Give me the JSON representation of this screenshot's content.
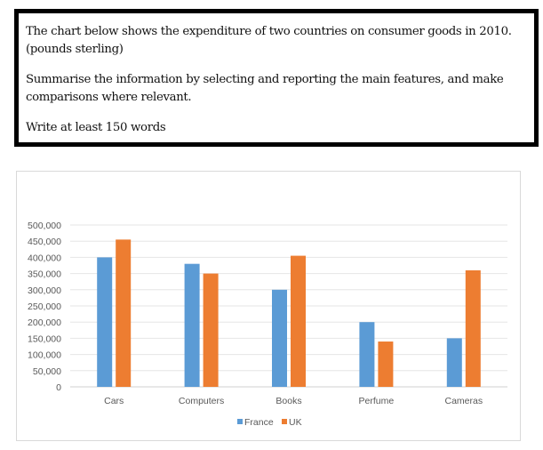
{
  "task": {
    "line1": "The chart below shows the expenditure of two countries on consumer goods in 2010. (pounds sterling)",
    "line2": "Summarise the information by selecting and reporting the main features, and make comparisons where relevant.",
    "line3": "Write at least 150 words"
  },
  "chart_data": {
    "type": "bar",
    "categories": [
      "Cars",
      "Computers",
      "Books",
      "Perfume",
      "Cameras"
    ],
    "series": [
      {
        "name": "France",
        "color": "#5b9bd5",
        "values": [
          400000,
          380000,
          300000,
          200000,
          150000
        ]
      },
      {
        "name": "UK",
        "color": "#ed7d31",
        "values": [
          455000,
          350000,
          405000,
          140000,
          360000
        ]
      }
    ],
    "yticks": [
      "0",
      "50,000",
      "100,000",
      "150,000",
      "200,000",
      "250,000",
      "300,000",
      "350,000",
      "400,000",
      "450,000",
      "500,000"
    ],
    "ylim": [
      0,
      500000
    ],
    "grid": true,
    "legend": "bottom"
  }
}
